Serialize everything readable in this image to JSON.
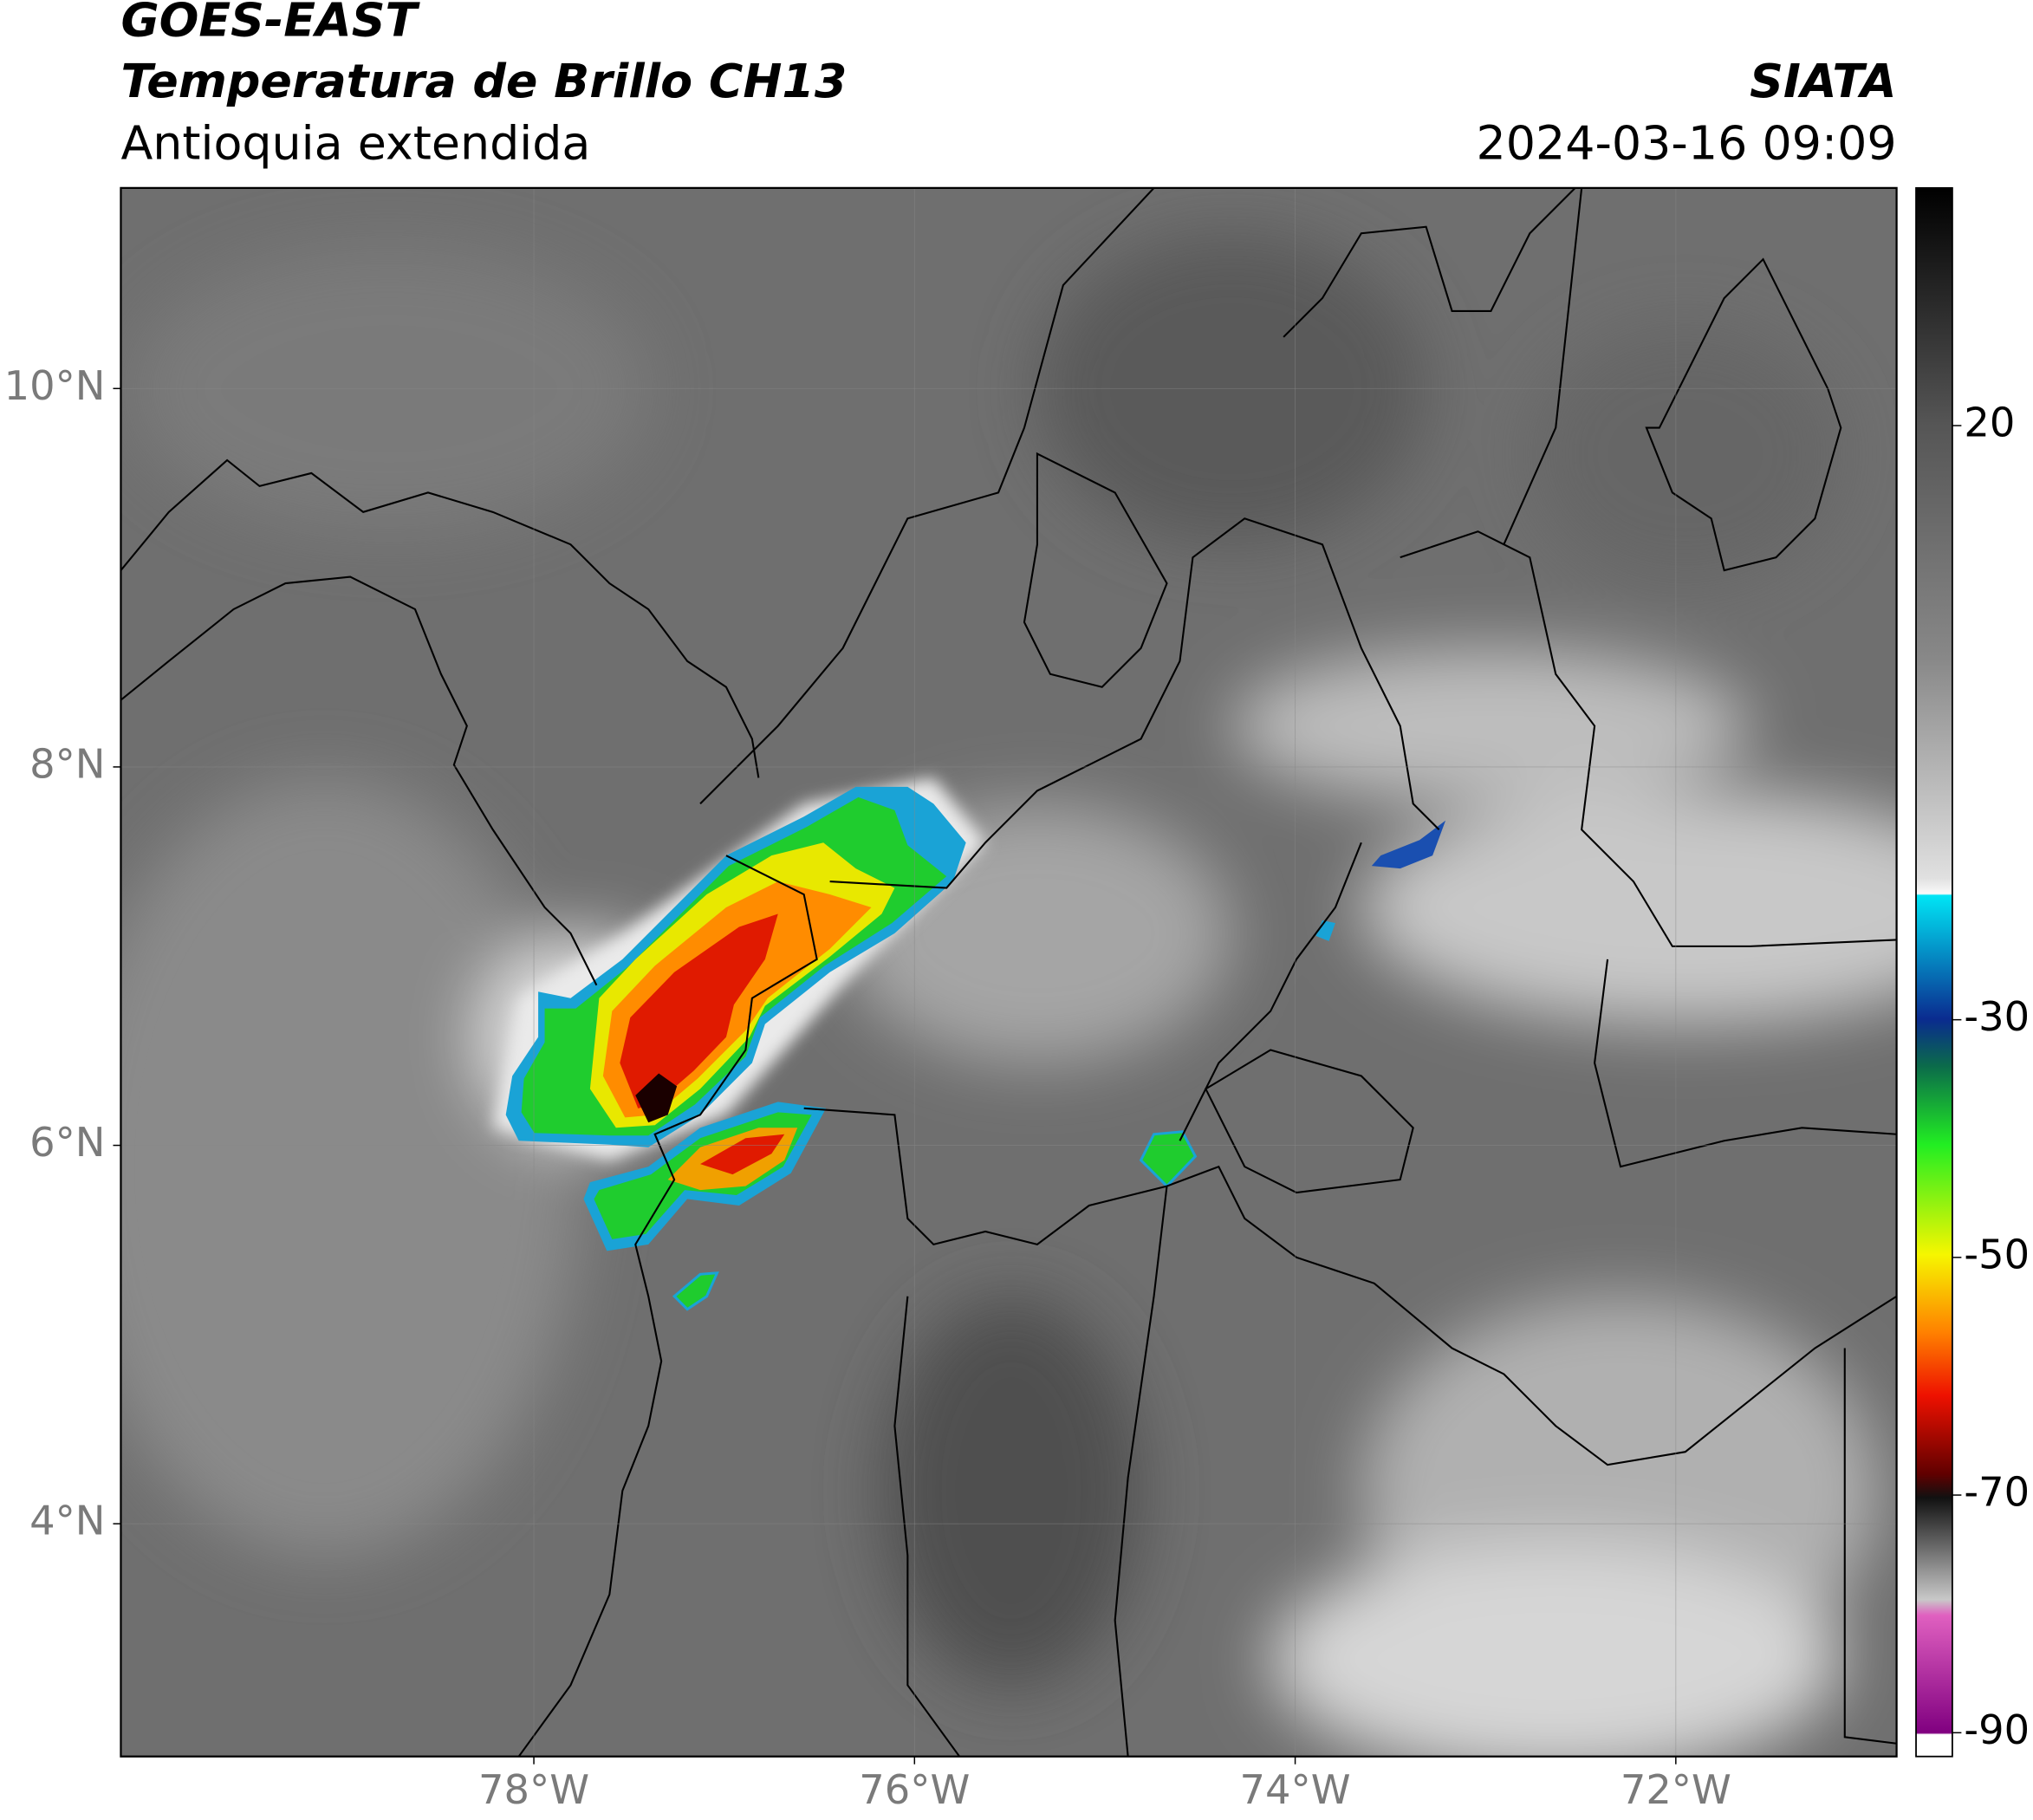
{
  "header": {
    "title": "GOES-EAST",
    "subtitle": "Temperatura de Brillo CH13",
    "region": "Antioquia extendida",
    "source": "SIATA",
    "timestamp": "2024-03-16 09:09"
  },
  "map": {
    "xlim": [
      -80.17,
      -70.84
    ],
    "ylim": [
      2.77,
      11.06
    ],
    "xticks": [
      {
        "value": -78,
        "label": "78°W"
      },
      {
        "value": -76,
        "label": "76°W"
      },
      {
        "value": -74,
        "label": "74°W"
      },
      {
        "value": -72,
        "label": "72°W"
      }
    ],
    "yticks": [
      {
        "value": 4,
        "label": "4°N"
      },
      {
        "value": 6,
        "label": "6°N"
      },
      {
        "value": 8,
        "label": "8°N"
      },
      {
        "value": 10,
        "label": "10°N"
      }
    ],
    "grid": true
  },
  "colorbar": {
    "lim": [
      -92,
      40
    ],
    "ticks": [
      -90,
      -70,
      -50,
      -30,
      20
    ]
  }
}
